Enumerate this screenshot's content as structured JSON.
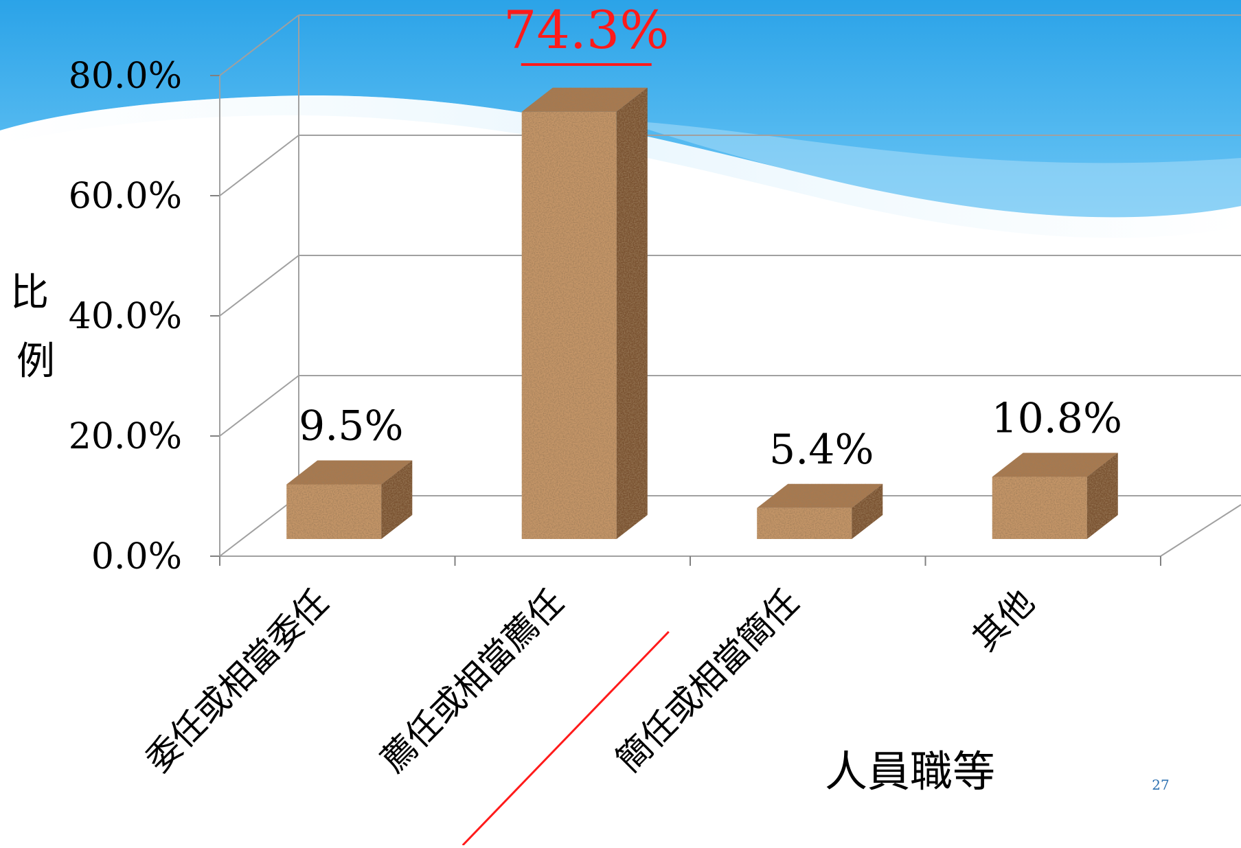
{
  "slide": {
    "page_number": "27"
  },
  "chart_data": {
    "type": "bar",
    "categories": [
      "委任或相當委任",
      "薦任或相當薦任",
      "簡任或相當簡任",
      "其他"
    ],
    "values": [
      9.5,
      74.3,
      5.4,
      10.8
    ],
    "value_labels": [
      "9.5%",
      "74.3%",
      "5.4%",
      "10.8%"
    ],
    "highlight_index": 1,
    "xlabel": "人員職等",
    "ylabel": "比例",
    "ylim": [
      0,
      80
    ],
    "yticks": [
      0,
      20,
      40,
      60,
      80
    ],
    "ytick_labels": [
      "0.0%",
      "20.0%",
      "40.0%",
      "60.0%",
      "80.0%"
    ],
    "grid": true,
    "three_d": true,
    "bar_color": "#c49567",
    "highlight_color": "#ff1a1a"
  }
}
